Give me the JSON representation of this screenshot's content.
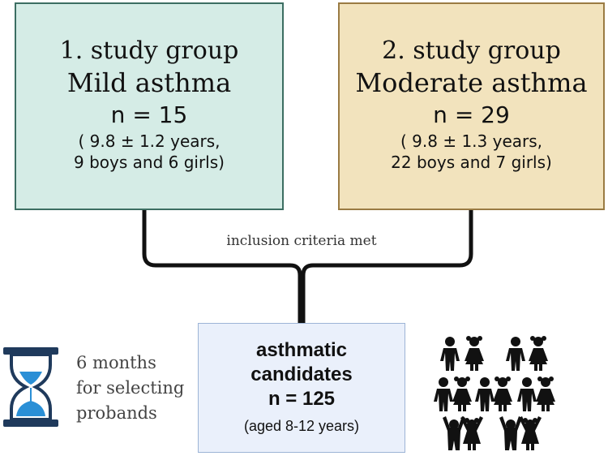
{
  "group1": {
    "heading": "1. study  group",
    "title": "Mild asthma",
    "n": "n = 15",
    "detail_line1": "( 9.8 ± 1.2 years,",
    "detail_line2": "9 boys and 6 girls)",
    "fill": "#d5ece6"
  },
  "group2": {
    "heading": "2. study  group",
    "title": "Moderate asthma",
    "n": "n = 29",
    "detail_line1": "( 9.8 ± 1.3 years,",
    "detail_line2": "22 boys and 7 girls)",
    "fill": "#f2e3bd"
  },
  "connector_label": "inclusion criteria met",
  "candidates": {
    "line1": "asthmatic",
    "line2": "candidates",
    "n": "n = 125",
    "age": "(aged 8-12 years)",
    "fill": "#eaf0fb"
  },
  "timeline": {
    "line1": "6 months",
    "line2": "for selecting",
    "line3": "probands",
    "icon": "hourglass-icon",
    "icon_color": "#2a8fd6"
  },
  "children_icon": "children-group-icon"
}
